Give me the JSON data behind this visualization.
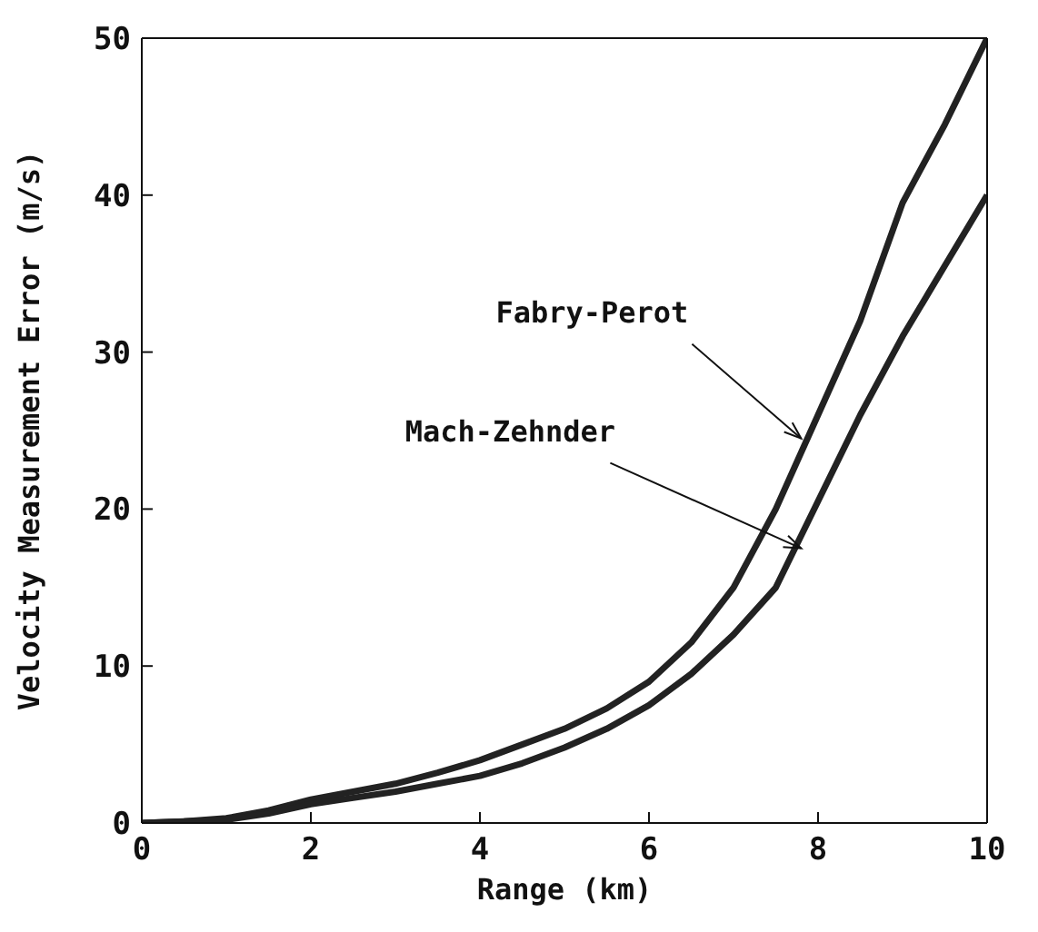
{
  "chart_data": {
    "type": "line",
    "xlabel": "Range (km)",
    "ylabel": "Velocity Measurement Error (m/s)",
    "x": [
      0,
      0.5,
      1,
      1.5,
      2,
      2.5,
      3,
      3.5,
      4,
      4.5,
      5,
      5.5,
      6,
      6.5,
      7,
      7.5,
      8,
      8.5,
      9,
      9.5,
      10
    ],
    "series": [
      {
        "color": "#222222",
        "values": [
          0,
          0.1,
          0.3,
          0.8,
          1.5,
          2,
          2.5,
          3.2,
          4,
          5,
          6,
          7.3,
          9,
          11.5,
          15,
          20,
          26,
          32,
          39.5,
          44.5,
          50
        ]
      },
      {
        "color": "#222222",
        "values": [
          0,
          0.1,
          0.2,
          0.6,
          1.2,
          1.6,
          2,
          2.5,
          3,
          3.8,
          4.8,
          6,
          7.5,
          9.5,
          12,
          15,
          20.5,
          26,
          31,
          35.5,
          40
        ]
      }
    ],
    "annotations": [
      {
        "text": "Fabry-Perot",
        "x": 7.8,
        "y": 24.5
      },
      {
        "text": "Mach-Zehnder",
        "x": 7.8,
        "y": 17.5
      }
    ],
    "xlim": [
      0,
      10
    ],
    "xticks": [
      0,
      2,
      4,
      6,
      8,
      10
    ],
    "ylim": [
      0,
      50
    ],
    "yticks": [
      0,
      10,
      20,
      30,
      40,
      50
    ]
  }
}
